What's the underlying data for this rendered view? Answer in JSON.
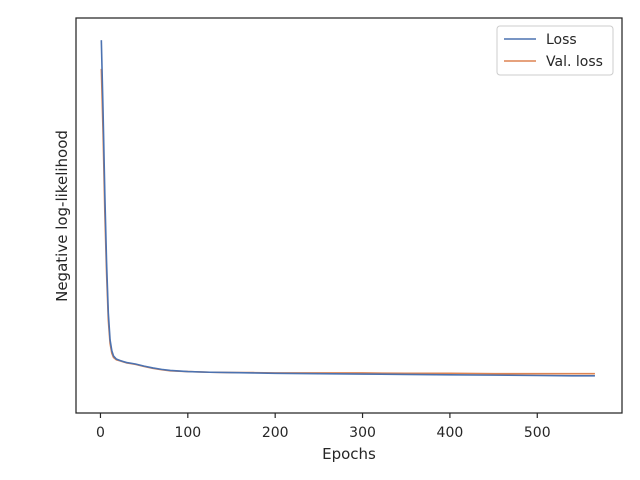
{
  "chart_data": {
    "type": "line",
    "title": "",
    "xlabel": "Epochs",
    "ylabel": "Negative log-likelihood",
    "xlim": [
      -28,
      597
    ],
    "ylim": [
      0,
      1
    ],
    "x_ticks": [
      0,
      100,
      200,
      300,
      400,
      500
    ],
    "y_ticks_visible": false,
    "grid": false,
    "legend_position": "top-right",
    "series": [
      {
        "name": "Loss",
        "color": "#4c72b0",
        "x": [
          1,
          3,
          5,
          7,
          9,
          11,
          13,
          15,
          18,
          22,
          26,
          30,
          40,
          50,
          60,
          70,
          80,
          100,
          125,
          150,
          175,
          200,
          250,
          300,
          350,
          400,
          450,
          500,
          540,
          566
        ],
        "y": [
          0.98,
          0.78,
          0.55,
          0.36,
          0.22,
          0.145,
          0.115,
          0.1,
          0.092,
          0.088,
          0.085,
          0.082,
          0.078,
          0.072,
          0.067,
          0.063,
          0.06,
          0.057,
          0.055,
          0.054,
          0.053,
          0.052,
          0.051,
          0.05,
          0.049,
          0.048,
          0.047,
          0.046,
          0.045,
          0.045
        ]
      },
      {
        "name": "Val. loss",
        "color": "#dd8452",
        "x": [
          1,
          3,
          5,
          7,
          9,
          11,
          13,
          15,
          18,
          22,
          26,
          30,
          40,
          50,
          60,
          70,
          80,
          100,
          125,
          150,
          175,
          200,
          250,
          300,
          350,
          400,
          450,
          500,
          540,
          566
        ],
        "y": [
          0.9,
          0.72,
          0.5,
          0.33,
          0.2,
          0.135,
          0.108,
          0.096,
          0.09,
          0.087,
          0.084,
          0.081,
          0.077,
          0.071,
          0.066,
          0.062,
          0.059,
          0.057,
          0.055,
          0.054,
          0.054,
          0.053,
          0.053,
          0.053,
          0.052,
          0.052,
          0.051,
          0.051,
          0.051,
          0.051
        ]
      }
    ]
  }
}
